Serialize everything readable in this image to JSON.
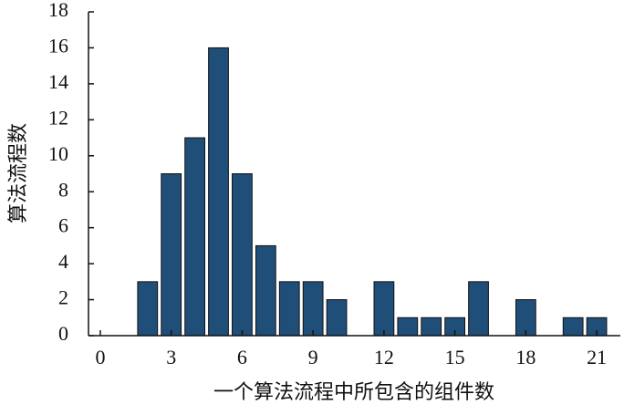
{
  "chart_data": {
    "type": "bar",
    "x": [
      2,
      3,
      4,
      5,
      6,
      7,
      8,
      9,
      10,
      11,
      12,
      13,
      14,
      15,
      16,
      17,
      18,
      19,
      20,
      21
    ],
    "values": [
      3,
      9,
      11,
      16,
      9,
      5,
      3,
      3,
      2,
      0,
      3,
      1,
      1,
      1,
      3,
      0,
      2,
      0,
      1,
      1
    ],
    "color": "#1f4e79",
    "xlabel": "一个算法流程中所包含的组件数",
    "ylabel": "算法流程数",
    "xlim": [
      -0.5,
      22
    ],
    "xticks": [
      0,
      3,
      6,
      9,
      12,
      15,
      18,
      21
    ],
    "ylim": [
      0,
      18
    ],
    "yticks": [
      0,
      2,
      4,
      6,
      8,
      10,
      12,
      14,
      16,
      18
    ]
  }
}
